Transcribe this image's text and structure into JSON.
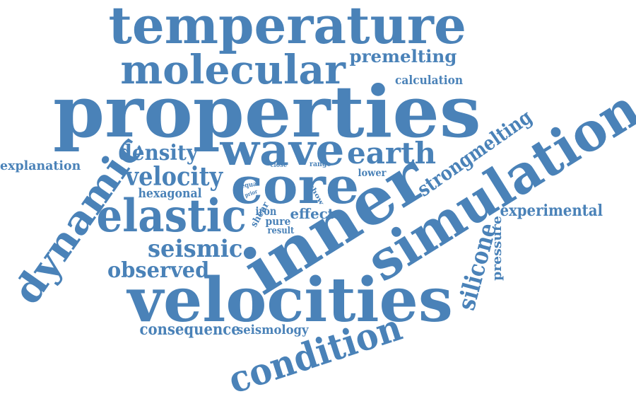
{
  "word_cloud": {
    "color": "#4a82b8",
    "words": [
      {
        "id": "temperature",
        "text": "temperature"
      },
      {
        "id": "molecular",
        "text": "molecular"
      },
      {
        "id": "premelting",
        "text": "premelting"
      },
      {
        "id": "calculation",
        "text": "calculation"
      },
      {
        "id": "properties",
        "text": "properties"
      },
      {
        "id": "explanation",
        "text": "explanation"
      },
      {
        "id": "density",
        "text": "density"
      },
      {
        "id": "wave",
        "text": "wave"
      },
      {
        "id": "earth",
        "text": "earth"
      },
      {
        "id": "velocity",
        "text": "velocity"
      },
      {
        "id": "close",
        "text": "close"
      },
      {
        "id": "range",
        "text": "range"
      },
      {
        "id": "lower",
        "text": "lower"
      },
      {
        "id": "core",
        "text": "core"
      },
      {
        "id": "hexagonal",
        "text": "hexagonal"
      },
      {
        "id": "equal",
        "text": "equal"
      },
      {
        "id": "prior",
        "text": "prior"
      },
      {
        "id": "show",
        "text": "show"
      },
      {
        "id": "strongmelting",
        "text": "strongmelting"
      },
      {
        "id": "dynamic",
        "text": "dynamic"
      },
      {
        "id": "elastic",
        "text": "elastic"
      },
      {
        "id": "shear",
        "text": "shear"
      },
      {
        "id": "iron",
        "text": "iron"
      },
      {
        "id": "pure",
        "text": "pure"
      },
      {
        "id": "effect",
        "text": "effect"
      },
      {
        "id": "result",
        "text": "result"
      },
      {
        "id": "inner",
        "text": "inner"
      },
      {
        "id": "simulation",
        "text": "simulation"
      },
      {
        "id": "experimental",
        "text": "experimental"
      },
      {
        "id": "seismic",
        "text": "seismic"
      },
      {
        "id": "silicone",
        "text": "silicone"
      },
      {
        "id": "pressure",
        "text": "pressure"
      },
      {
        "id": "observed",
        "text": "observed"
      },
      {
        "id": "velocities",
        "text": "velocities"
      },
      {
        "id": "consequence",
        "text": "consequence"
      },
      {
        "id": "seismology",
        "text": "seismology"
      },
      {
        "id": "condition",
        "text": "condition"
      }
    ]
  }
}
